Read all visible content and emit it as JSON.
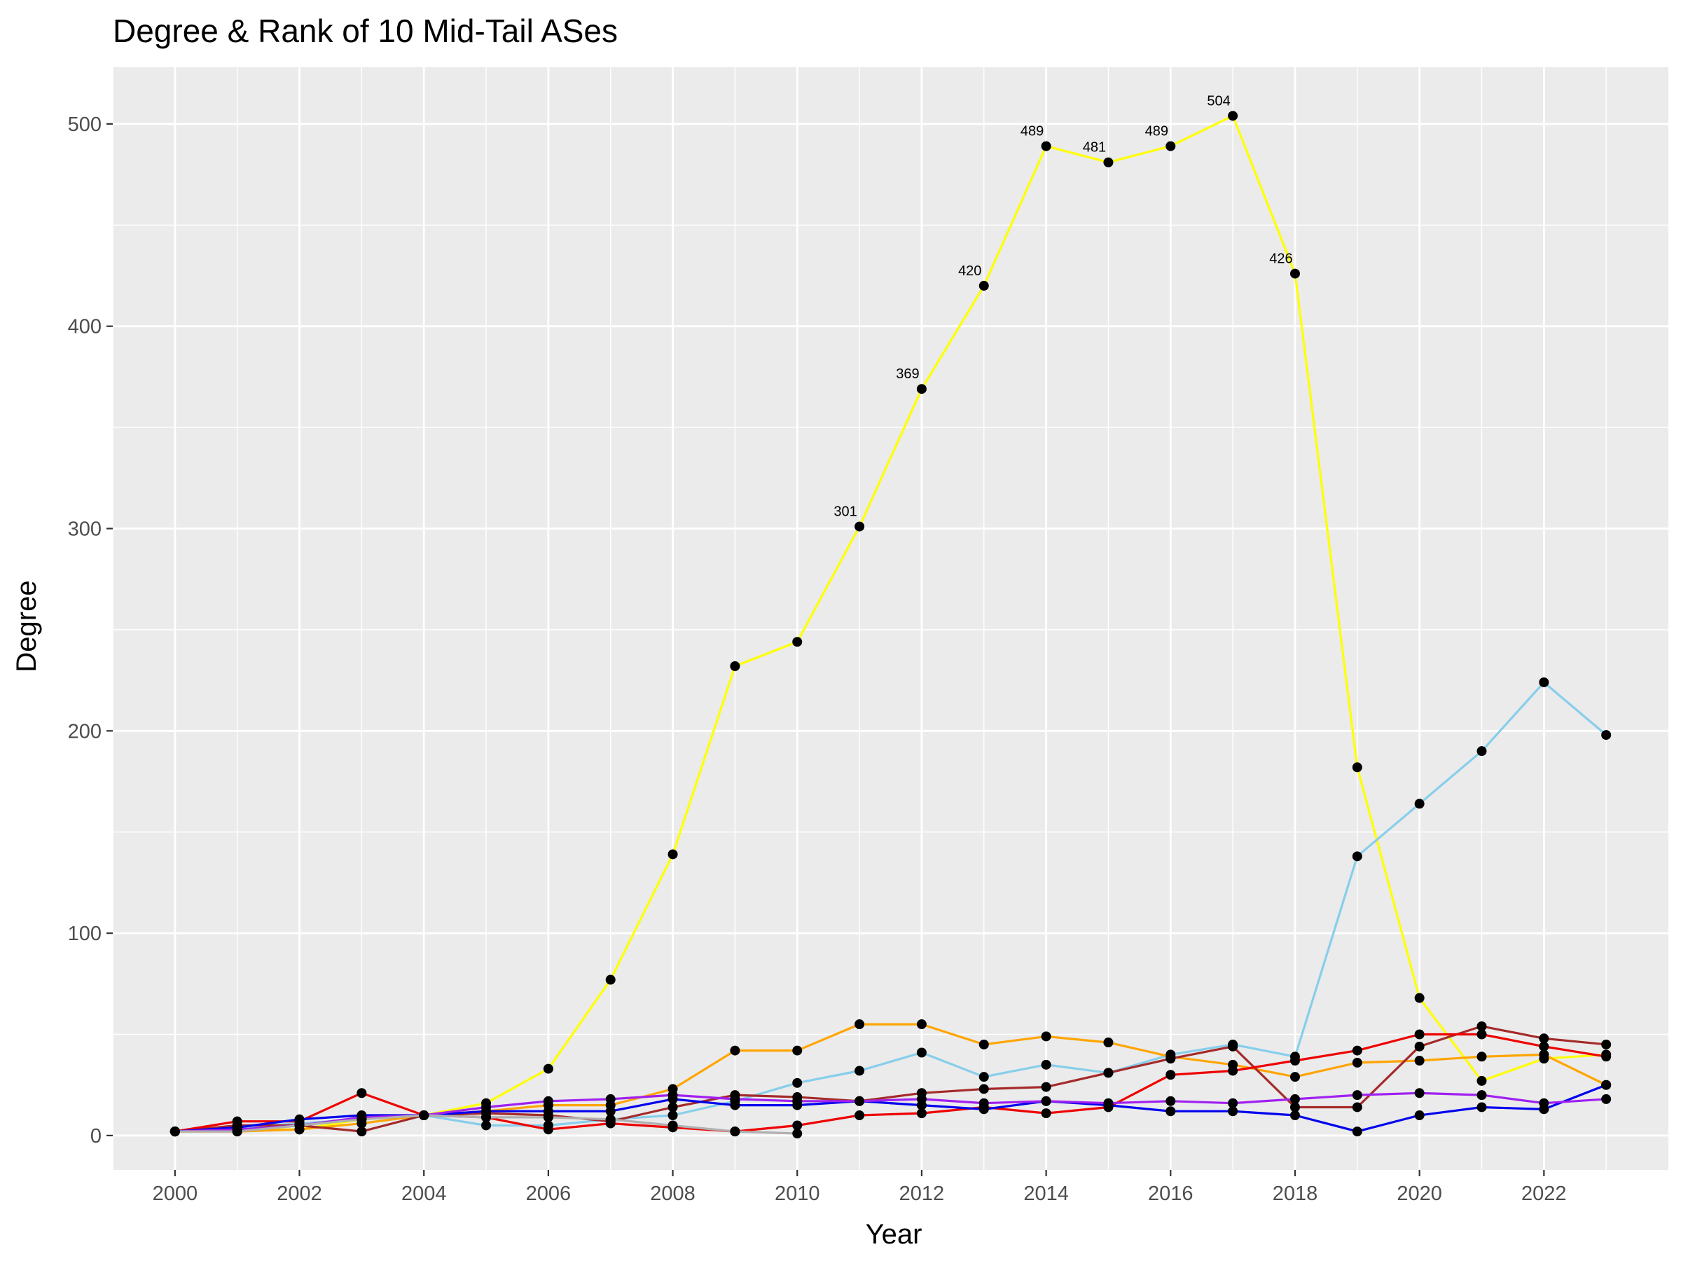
{
  "chart_data": {
    "type": "line",
    "title": "Degree & Rank of 10 Mid-Tail ASes",
    "xlabel": "Year",
    "ylabel": "Degree",
    "xlim": [
      1999,
      2024
    ],
    "ylim": [
      -17,
      528
    ],
    "x_ticks": [
      2000,
      2002,
      2004,
      2006,
      2008,
      2010,
      2012,
      2014,
      2016,
      2018,
      2020,
      2022
    ],
    "y_ticks": [
      0,
      100,
      200,
      300,
      400,
      500
    ],
    "grid": true,
    "legend": "none",
    "point_color": "#000000",
    "panel_background": "#ebebeb",
    "grid_color": "#ffffff",
    "series": [
      {
        "color": "#ffff00",
        "x": [
          2000,
          2001,
          2002,
          2003,
          2004,
          2005,
          2006,
          2007,
          2008,
          2009,
          2010,
          2011,
          2012,
          2013,
          2014,
          2015,
          2016,
          2017,
          2018,
          2019,
          2020,
          2021,
          2022,
          2023
        ],
        "values": [
          2,
          3,
          3,
          8,
          10,
          16,
          33,
          77,
          139,
          232,
          244,
          301,
          369,
          420,
          489,
          481,
          489,
          504,
          426,
          182,
          68,
          27,
          38,
          40
        ],
        "labels": [
          "",
          "",
          "",
          "",
          "",
          "",
          "",
          "",
          "",
          "",
          "",
          "301",
          "369",
          "420",
          "489",
          "481",
          "489",
          "504",
          "426",
          "",
          "",
          "",
          "",
          ""
        ]
      },
      {
        "color": "#87ceeb",
        "x": [
          2000,
          2001,
          2002,
          2003,
          2004,
          2005,
          2006,
          2007,
          2008,
          2009,
          2010,
          2011,
          2012,
          2013,
          2014,
          2015,
          2016,
          2017,
          2018,
          2019,
          2020,
          2021,
          2022,
          2023
        ],
        "values": [
          2,
          4,
          6,
          8,
          10,
          5,
          5,
          8,
          10,
          17,
          26,
          32,
          41,
          29,
          35,
          31,
          40,
          45,
          39,
          138,
          164,
          190,
          224,
          198
        ]
      },
      {
        "color": "#ffa500",
        "x": [
          2000,
          2001,
          2002,
          2003,
          2004,
          2005,
          2006,
          2007,
          2008,
          2009,
          2010,
          2011,
          2012,
          2013,
          2014,
          2015,
          2016,
          2017,
          2018,
          2019,
          2020,
          2021,
          2022,
          2023
        ],
        "values": [
          2,
          2,
          3,
          6,
          10,
          12,
          15,
          15,
          23,
          42,
          42,
          55,
          55,
          45,
          49,
          46,
          39,
          35,
          29,
          36,
          37,
          39,
          40,
          25
        ]
      },
      {
        "color": "#a52a2a",
        "x": [
          2000,
          2001,
          2002,
          2003,
          2004,
          2005,
          2006,
          2007,
          2008,
          2009,
          2010,
          2011,
          2012,
          2013,
          2014,
          2015,
          2016,
          2017,
          2018,
          2019,
          2020,
          2021,
          2022,
          2023
        ],
        "values": [
          2,
          5,
          5,
          2,
          10,
          11,
          10,
          7,
          14,
          20,
          19,
          17,
          21,
          23,
          24,
          31,
          38,
          44,
          14,
          14,
          44,
          54,
          48,
          45
        ]
      },
      {
        "color": "#ee0000",
        "x": [
          2000,
          2001,
          2002,
          2003,
          2004,
          2005,
          2006,
          2007,
          2008,
          2009,
          2010,
          2011,
          2012,
          2013,
          2014,
          2015,
          2016,
          2017,
          2018,
          2019,
          2020,
          2021,
          2022,
          2023
        ],
        "values": [
          2,
          7,
          7,
          21,
          10,
          9,
          3,
          6,
          4,
          2,
          5,
          10,
          11,
          14,
          11,
          14,
          30,
          32,
          37,
          42,
          50,
          50,
          44,
          39
        ]
      },
      {
        "color": "#0000ee",
        "x": [
          2000,
          2001,
          2002,
          2003,
          2004,
          2005,
          2006,
          2007,
          2008,
          2009,
          2010,
          2011,
          2012,
          2013,
          2014,
          2015,
          2016,
          2017,
          2018,
          2019,
          2020,
          2021,
          2022,
          2023
        ],
        "values": [
          2,
          4,
          8,
          10,
          10,
          12,
          12,
          12,
          18,
          15,
          15,
          17,
          15,
          13,
          17,
          15,
          12,
          12,
          10,
          2,
          10,
          14,
          13,
          25
        ]
      },
      {
        "color": "#a020f0",
        "x": [
          2000,
          2001,
          2002,
          2003,
          2004,
          2005,
          2006,
          2007,
          2008,
          2009,
          2010,
          2011,
          2012,
          2013,
          2014,
          2015,
          2016,
          2017,
          2018,
          2019,
          2020,
          2021,
          2022,
          2023
        ],
        "values": [
          2,
          3,
          5,
          9,
          10,
          14,
          17,
          18,
          20,
          18,
          17,
          17,
          18,
          16,
          17,
          16,
          17,
          16,
          18,
          20,
          21,
          20,
          16,
          18
        ]
      },
      {
        "color": "#b0b0b0",
        "x": [
          2000,
          2001,
          2002,
          2003,
          2004,
          2005,
          2006,
          2007,
          2008,
          2009,
          2010
        ],
        "values": [
          2,
          2,
          5,
          8,
          10,
          9,
          9,
          8,
          5,
          2,
          1
        ]
      }
    ]
  }
}
